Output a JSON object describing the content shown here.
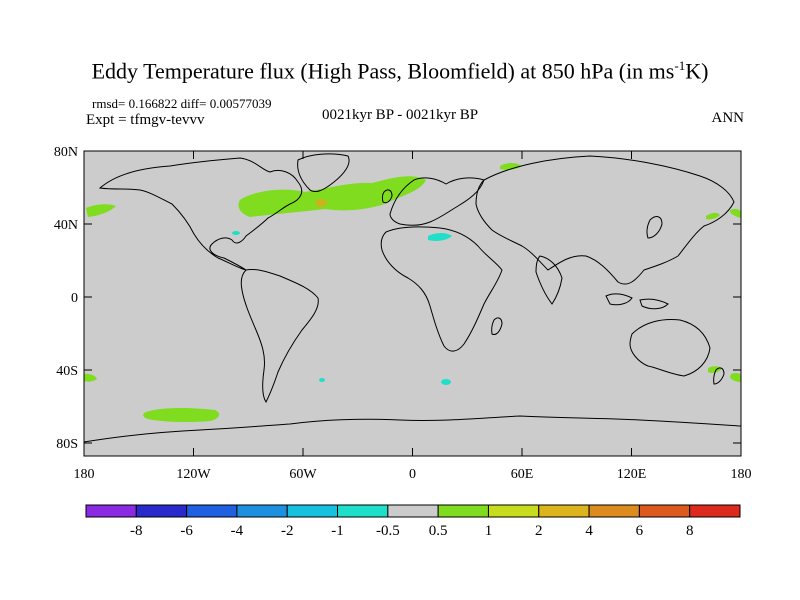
{
  "title_main": "Eddy Temperature flux (High Pass, Bloomfield) at 850 hPa (in ms",
  "title_sup": "-1",
  "title_end": "K)",
  "stats": "rmsd= 0.166822 diff= 0.00577039",
  "expt": "Expt = tfmgv-tevvv",
  "period": "0021kyr BP - 0021kyr BP",
  "season": "ANN",
  "x_ticks": [
    "180",
    "120W",
    "60W",
    "0",
    "60E",
    "120E",
    "180"
  ],
  "y_ticks": [
    "80N",
    "40N",
    "0",
    "40S",
    "80S"
  ],
  "colorbar": {
    "colors": [
      "#8a2be2",
      "#2a2acc",
      "#1e60e0",
      "#1e90e0",
      "#18c0e0",
      "#1ee0c8",
      "#cccccc",
      "#7fdc1e",
      "#c8dc1e",
      "#dcb41e",
      "#dc8c1e",
      "#dc5a1e",
      "#dc2a1e"
    ],
    "labels": [
      "-8",
      "-6",
      "-4",
      "-2",
      "-1",
      "-0.5",
      "0.5",
      "1",
      "2",
      "4",
      "6",
      "8"
    ]
  },
  "map_fill": "#cccccc"
}
